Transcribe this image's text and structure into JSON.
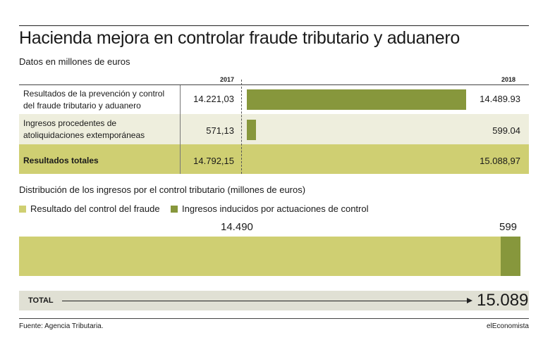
{
  "title": "Hacienda mejora en controlar fraude tributario y aduanero",
  "subtitle": "Datos en millones de euros",
  "table": {
    "year_a": "2017",
    "year_b": "2018",
    "rows": [
      {
        "label_line1": "Resultados de la prevención y control",
        "label_line2": "del fraude tributario y aduanero",
        "v2017": "14.221,03",
        "v2018": "14.489.93"
      },
      {
        "label_line1": "Ingresos procedentes de",
        "label_line2": "atoliquidaciones extemporáneas",
        "v2017": "571,13",
        "v2018": "599.04"
      },
      {
        "label_line1": "Resultados totales",
        "label_line2": "",
        "v2017": "14.792,15",
        "v2018": "15.088,97"
      }
    ]
  },
  "distribution": {
    "title": "Distribución de los ingresos por el control tributario (millones de euros)",
    "legend": [
      {
        "label": "Resultado del control del fraude",
        "color": "#cfcf72"
      },
      {
        "label": "Ingresos inducidos por actuaciones de control",
        "color": "#87973c"
      }
    ],
    "value_a_label": "14.490",
    "value_b_label": "599",
    "total_label": "TOTAL",
    "total_value": "15.089"
  },
  "footer": {
    "source": "Fuente: Agencia Tributaria.",
    "brand": "elEconomista"
  },
  "colors": {
    "light": "#cfcf72",
    "dark": "#87973c",
    "light_bg": "#eeeedd",
    "total_bg": "#e0e0d4"
  },
  "chart_data": [
    {
      "type": "bar",
      "title": "Hacienda mejora en controlar fraude tributario y aduanero",
      "categories": [
        "Resultados de la prevención y control del fraude tributario y aduanero",
        "Ingresos procedentes de atoliquidaciones extemporáneas"
      ],
      "series": [
        {
          "name": "2017",
          "values": [
            14221.03,
            571.13
          ]
        },
        {
          "name": "2018",
          "values": [
            14489.93,
            599.04
          ]
        }
      ],
      "totals": {
        "2017": 14792.15,
        "2018": 15088.97
      }
    },
    {
      "type": "bar",
      "title": "Distribución de los ingresos por el control tributario (millones de euros)",
      "stacked": true,
      "series": [
        {
          "name": "Resultado del control del fraude",
          "values": [
            14490
          ]
        },
        {
          "name": "Ingresos inducidos por actuaciones de control",
          "values": [
            599
          ]
        }
      ],
      "total": 15089
    }
  ]
}
